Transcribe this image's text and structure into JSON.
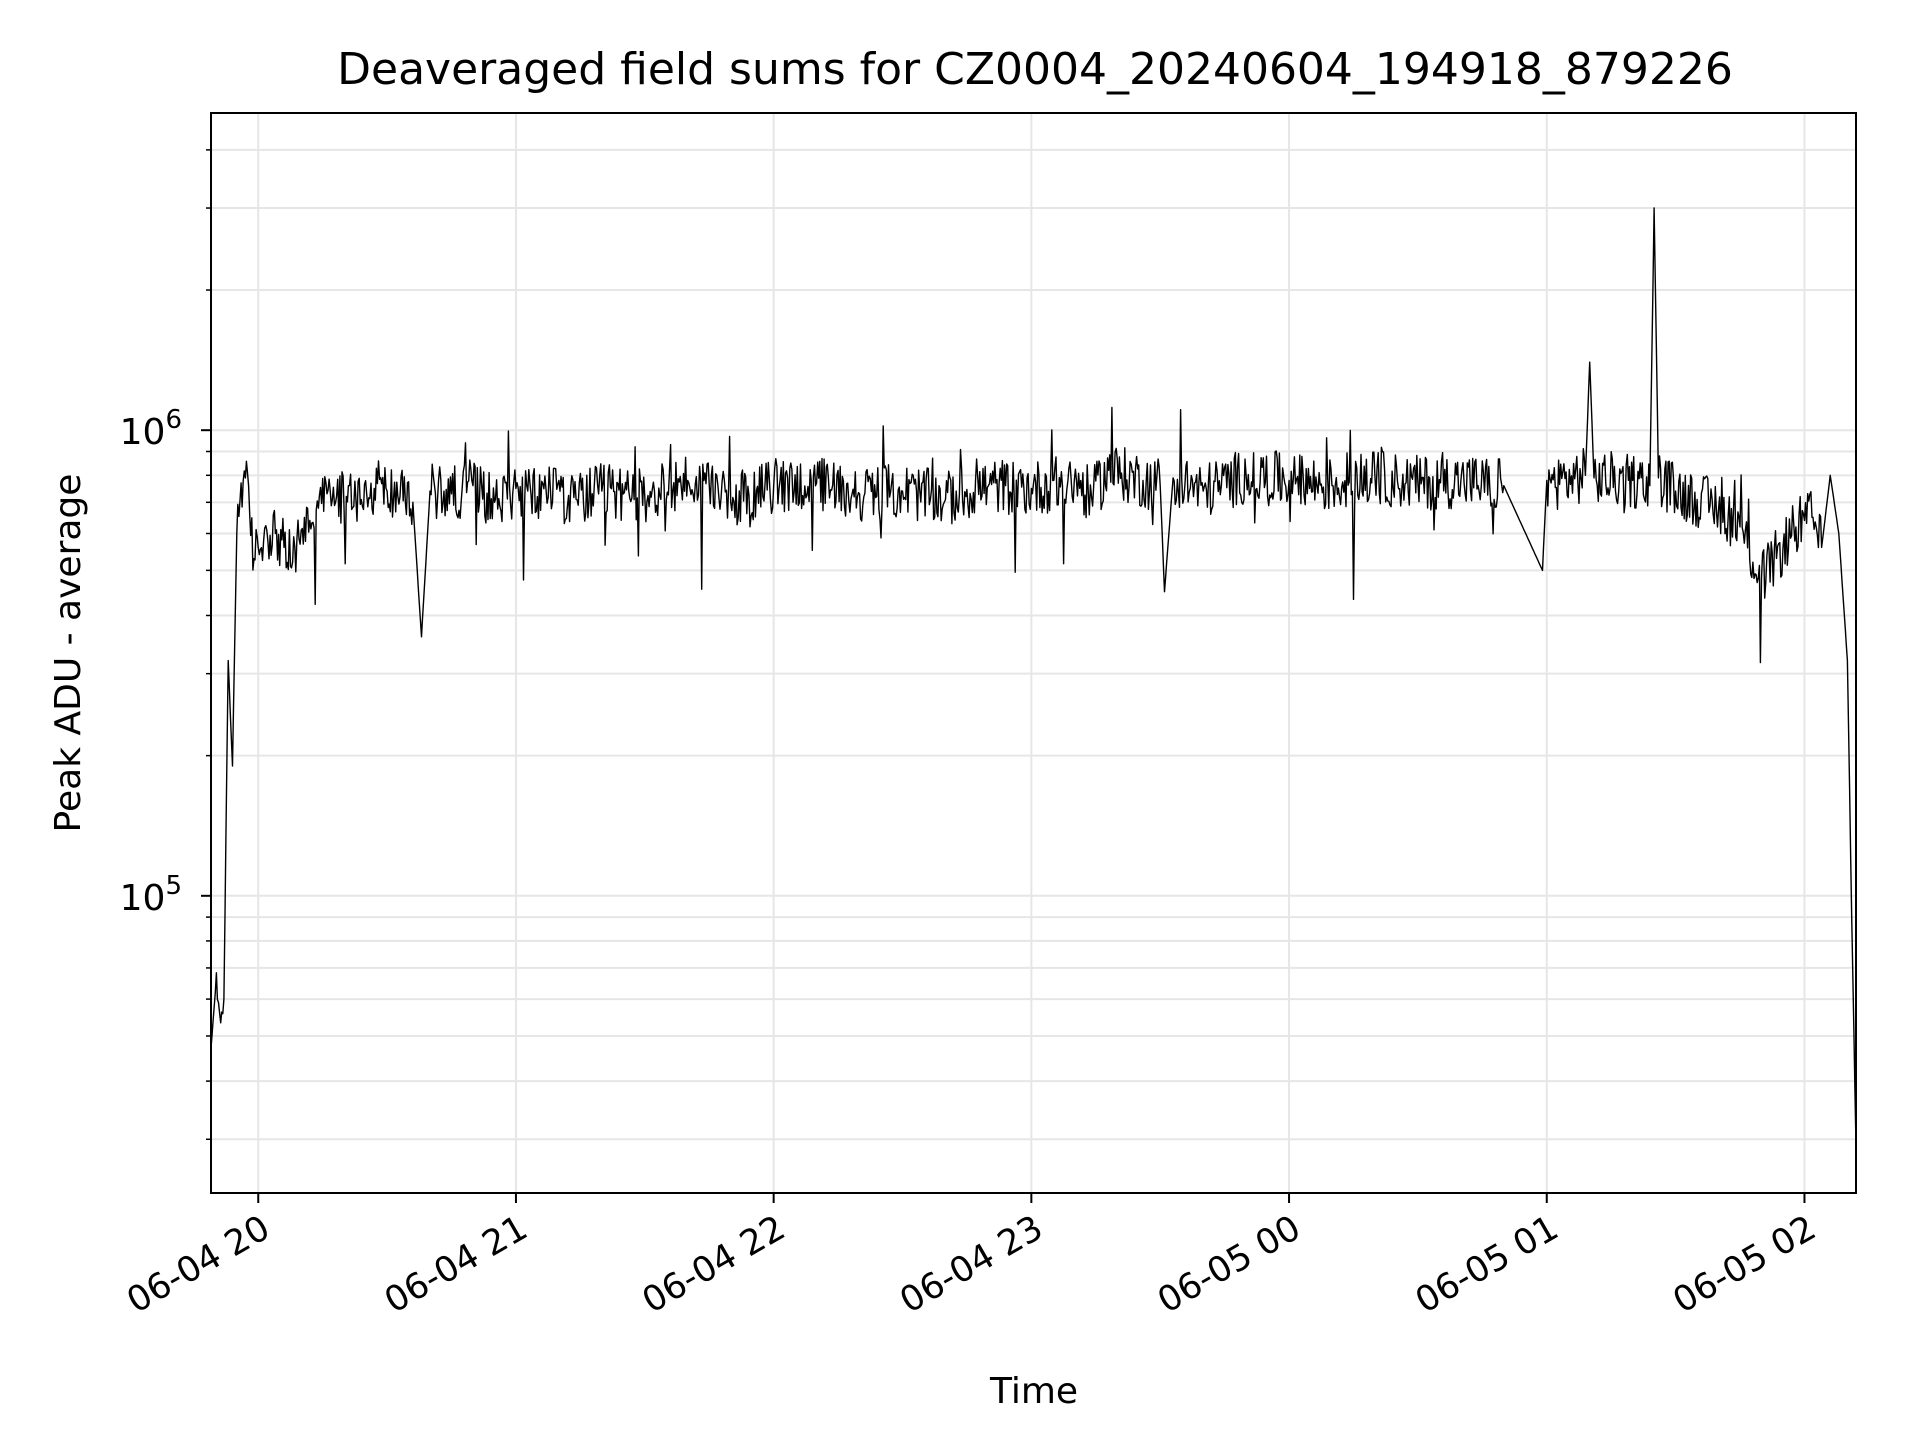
{
  "chart_data": {
    "type": "line",
    "title": "Deaveraged field sums for CZ0004_20240604_194918_879226",
    "xlabel": "Time",
    "ylabel": "Peak ADU - average",
    "xscale": "time",
    "yscale": "log",
    "xlim": [
      "2024-06-04 19:49:00",
      "2024-06-05 02:12:00"
    ],
    "ylim": [
      23000,
      4800000
    ],
    "x_ticks": [
      {
        "value": "2024-06-04 20:00",
        "label": "06-04 20"
      },
      {
        "value": "2024-06-04 21:00",
        "label": "06-04 21"
      },
      {
        "value": "2024-06-04 22:00",
        "label": "06-04 22"
      },
      {
        "value": "2024-06-04 23:00",
        "label": "06-04 23"
      },
      {
        "value": "2024-06-05 00:00",
        "label": "06-05 00"
      },
      {
        "value": "2024-06-05 01:00",
        "label": "06-05 01"
      },
      {
        "value": "2024-06-05 02:00",
        "label": "06-05 02"
      }
    ],
    "y_ticks": [
      {
        "value": 100000,
        "base": "10",
        "exp": "5"
      },
      {
        "value": 1000000,
        "base": "10",
        "exp": "6"
      }
    ],
    "grid": true,
    "line_color": "#000000",
    "series": [
      {
        "x": [
          "2024-06-04 19:49:00",
          "2024-06-04 19:50:00",
          "2024-06-04 19:51:00",
          "2024-06-04 19:52:00",
          "2024-06-04 19:53:00",
          "2024-06-04 19:54:00",
          "2024-06-04 19:55:00",
          "2024-06-04 19:56:00",
          "2024-06-04 19:57:00",
          "2024-06-04 19:58:00",
          "2024-06-04 19:59:00",
          "2024-06-04 20:00:00",
          "2024-06-04 20:02:00",
          "2024-06-04 20:04:00",
          "2024-06-04 20:06:00",
          "2024-06-04 20:08:00",
          "2024-06-04 20:10:00",
          "2024-06-04 20:12:00",
          "2024-06-04 20:14:00",
          "2024-06-04 20:16:00",
          "2024-06-04 20:18:00",
          "2024-06-04 20:21:00",
          "2024-06-04 20:24:00",
          "2024-06-04 20:27:00",
          "2024-06-04 20:30:00",
          "2024-06-04 20:33:00",
          "2024-06-04 20:36:00",
          "2024-06-04 20:38:00",
          "2024-06-04 20:40:00",
          "2024-06-04 20:45:00",
          "2024-06-04 20:50:00",
          "2024-06-04 20:55:00",
          "2024-06-04 21:00:00",
          "2024-06-04 21:05:00",
          "2024-06-04 21:10:00",
          "2024-06-04 21:12:00",
          "2024-06-04 21:14:00",
          "2024-06-04 21:20:00",
          "2024-06-04 21:30:00",
          "2024-06-04 21:40:00",
          "2024-06-04 21:50:00",
          "2024-06-04 22:00:00",
          "2024-06-04 22:10:00",
          "2024-06-04 22:20:00",
          "2024-06-04 22:30:00",
          "2024-06-04 22:40:00",
          "2024-06-04 22:50:00",
          "2024-06-04 23:00:00",
          "2024-06-04 23:10:00",
          "2024-06-04 23:14:00",
          "2024-06-04 23:18:00",
          "2024-06-04 23:30:00",
          "2024-06-04 23:31:00",
          "2024-06-04 23:33:00",
          "2024-06-04 23:40:00",
          "2024-06-04 23:50:00",
          "2024-06-05 00:00:00",
          "2024-06-05 00:10:00",
          "2024-06-05 00:20:00",
          "2024-06-05 00:30:00",
          "2024-06-05 00:40:00",
          "2024-06-05 00:50:00",
          "2024-06-05 00:59:00",
          "2024-06-05 01:00:00",
          "2024-06-05 01:01:00",
          "2024-06-05 01:09:00",
          "2024-06-05 01:10:00",
          "2024-06-05 01:11:00",
          "2024-06-05 01:20:00",
          "2024-06-05 01:24:00",
          "2024-06-05 01:25:00",
          "2024-06-05 01:26:00",
          "2024-06-05 01:30:00",
          "2024-06-05 01:35:00",
          "2024-06-05 01:40:00",
          "2024-06-05 01:45:00",
          "2024-06-05 01:50:00",
          "2024-06-05 01:55:00",
          "2024-06-05 01:58:00",
          "2024-06-05 02:00:00",
          "2024-06-05 02:02:00",
          "2024-06-05 02:04:00",
          "2024-06-05 02:06:00",
          "2024-06-05 02:08:00",
          "2024-06-05 02:10:00",
          "2024-06-05 02:11:00",
          "2024-06-05 02:12:00"
        ],
        "y": [
          47000,
          62000,
          56000,
          60000,
          320000,
          190000,
          600000,
          770000,
          790000,
          660000,
          530000,
          560000,
          610000,
          600000,
          560000,
          520000,
          610000,
          640000,
          680000,
          730000,
          700000,
          760000,
          710000,
          750000,
          740000,
          720000,
          700000,
          360000,
          740000,
          730000,
          760000,
          700000,
          750000,
          720000,
          780000,
          690000,
          710000,
          740000,
          720000,
          780000,
          700000,
          760000,
          770000,
          730000,
          740000,
          710000,
          760000,
          750000,
          780000,
          720000,
          820000,
          760000,
          450000,
          790000,
          740000,
          800000,
          780000,
          760000,
          790000,
          770000,
          780000,
          760000,
          500000,
          780000,
          770000,
          800000,
          1400000,
          790000,
          780000,
          760000,
          3000000,
          790000,
          740000,
          710000,
          680000,
          620000,
          480000,
          560000,
          620000,
          640000,
          650000,
          560000,
          800000,
          600000,
          320000,
          90000,
          29000
        ]
      }
    ]
  }
}
